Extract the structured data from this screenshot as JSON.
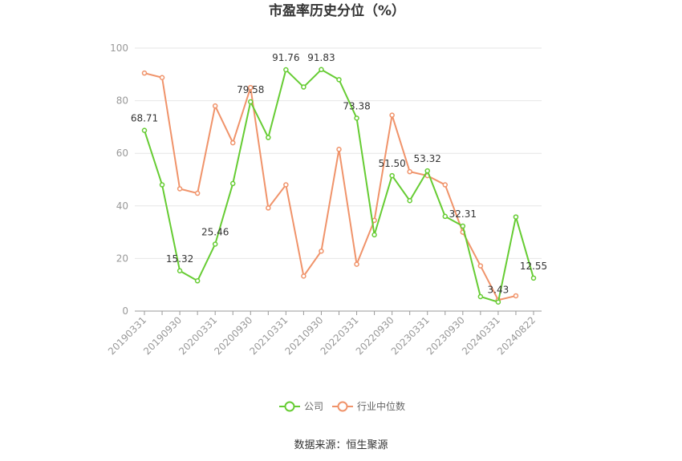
{
  "chart_data": {
    "type": "line",
    "title": "市盈率历史分位（%）",
    "source": "数据来源：恒生聚源",
    "ylim": [
      0,
      100
    ],
    "yticks": [
      0,
      20,
      40,
      60,
      80,
      100
    ],
    "grid": true,
    "legend_position": "bottom",
    "xtick_labels": [
      "20190331",
      "20190930",
      "20200331",
      "20200930",
      "20210331",
      "20210930",
      "20220331",
      "20220930",
      "20230331",
      "20230930",
      "20240331",
      "20240822"
    ],
    "x": [
      "20190331",
      "20190630",
      "20190930",
      "20191231",
      "20200331",
      "20200630",
      "20200930",
      "20201231",
      "20210331",
      "20210630",
      "20210930",
      "20211231",
      "20220331",
      "20220630",
      "20220930",
      "20221231",
      "20230331",
      "20230630",
      "20230930",
      "20231231",
      "20240331",
      "20240630",
      "20240822"
    ],
    "series": [
      {
        "name": "公司",
        "color": "#66cc33",
        "values": [
          68.71,
          48.0,
          15.32,
          11.5,
          25.46,
          48.5,
          79.58,
          66.0,
          91.76,
          85.2,
          91.83,
          88.0,
          73.38,
          29.0,
          51.5,
          42.0,
          53.32,
          36.0,
          32.31,
          5.5,
          3.43,
          35.8,
          12.55
        ],
        "labels": [
          "68.71",
          "",
          "15.32",
          "",
          "25.46",
          "",
          "79.58",
          "",
          "91.76",
          "",
          "91.83",
          "",
          "73.38",
          "",
          "51.50",
          "",
          "53.32",
          "",
          "32.31",
          "",
          "3.43",
          "",
          "12.55"
        ]
      },
      {
        "name": "行业中位数",
        "color": "#f0936a",
        "values": [
          90.5,
          88.8,
          46.5,
          44.8,
          78.0,
          64.0,
          85.0,
          39.2,
          48.0,
          13.3,
          22.8,
          61.5,
          17.8,
          34.5,
          74.5,
          53.0,
          51.5,
          48.0,
          30.0,
          17.2,
          4.2,
          5.8,
          null
        ]
      }
    ]
  }
}
